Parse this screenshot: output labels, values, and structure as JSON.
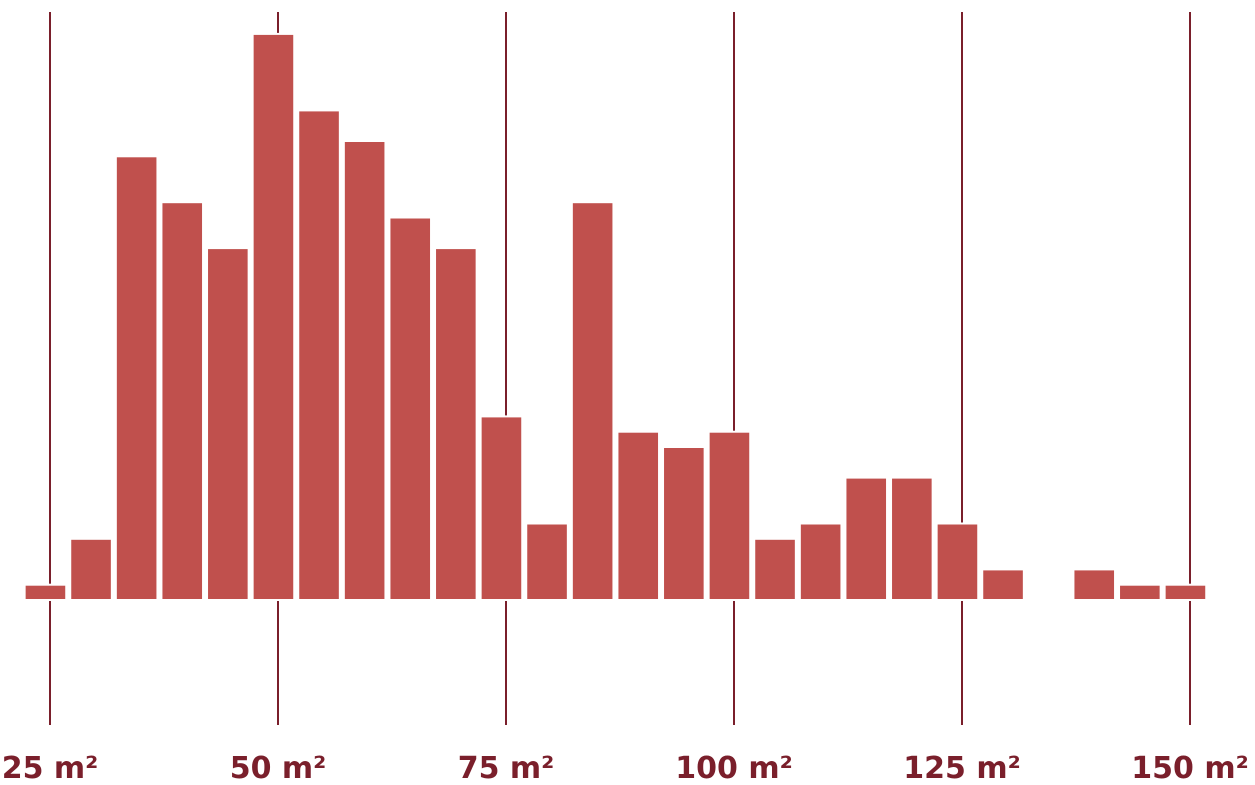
{
  "chart_data": {
    "type": "bar",
    "title": "",
    "xlabel": "",
    "ylabel": "",
    "bin_width": 5,
    "xlim": [
      22,
      150
    ],
    "ylim": [
      0,
      38
    ],
    "grid": true,
    "x_ticks": [
      {
        "value": 25,
        "label": "25 m²"
      },
      {
        "value": 50,
        "label": "50 m²"
      },
      {
        "value": 75,
        "label": "75 m²"
      },
      {
        "value": 100,
        "label": "100 m²"
      },
      {
        "value": 125,
        "label": "125 m²"
      },
      {
        "value": 150,
        "label": "150 m²"
      }
    ],
    "bins": [
      {
        "start": 22,
        "end": 27,
        "count": 1
      },
      {
        "start": 27,
        "end": 32,
        "count": 4
      },
      {
        "start": 32,
        "end": 37,
        "count": 29
      },
      {
        "start": 37,
        "end": 42,
        "count": 26
      },
      {
        "start": 42,
        "end": 47,
        "count": 23
      },
      {
        "start": 47,
        "end": 52,
        "count": 37
      },
      {
        "start": 52,
        "end": 57,
        "count": 32
      },
      {
        "start": 57,
        "end": 62,
        "count": 30
      },
      {
        "start": 62,
        "end": 67,
        "count": 25
      },
      {
        "start": 67,
        "end": 72,
        "count": 23
      },
      {
        "start": 72,
        "end": 77,
        "count": 12
      },
      {
        "start": 77,
        "end": 82,
        "count": 5
      },
      {
        "start": 82,
        "end": 87,
        "count": 26
      },
      {
        "start": 87,
        "end": 92,
        "count": 11
      },
      {
        "start": 92,
        "end": 97,
        "count": 10
      },
      {
        "start": 97,
        "end": 102,
        "count": 11
      },
      {
        "start": 102,
        "end": 107,
        "count": 4
      },
      {
        "start": 107,
        "end": 112,
        "count": 5
      },
      {
        "start": 112,
        "end": 117,
        "count": 8
      },
      {
        "start": 117,
        "end": 122,
        "count": 8
      },
      {
        "start": 122,
        "end": 127,
        "count": 5
      },
      {
        "start": 127,
        "end": 132,
        "count": 2
      },
      {
        "start": 132,
        "end": 137,
        "count": 0
      },
      {
        "start": 137,
        "end": 142,
        "count": 2
      },
      {
        "start": 142,
        "end": 147,
        "count": 1
      },
      {
        "start": 147,
        "end": 152,
        "count": 1
      }
    ],
    "colors": {
      "bar": "#c0504d",
      "gridline": "#7a1f2b",
      "tick_label": "#7a1f2b",
      "baseline": "#ffffff",
      "background": "#ffffff"
    }
  }
}
